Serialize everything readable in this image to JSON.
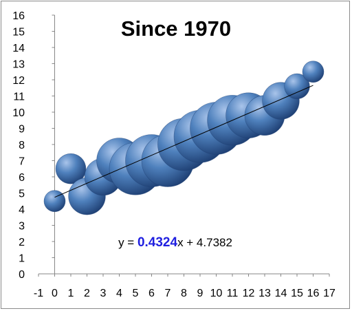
{
  "chart_data": {
    "type": "scatter",
    "bubble": true,
    "title": "Since 1970",
    "xlabel": "",
    "ylabel": "",
    "xlim": [
      -1,
      17
    ],
    "ylim": [
      0,
      16
    ],
    "x_ticks": [
      "-1",
      "0",
      "1",
      "2",
      "3",
      "4",
      "5",
      "6",
      "7",
      "8",
      "9",
      "10",
      "11",
      "12",
      "13",
      "14",
      "15",
      "16",
      "17"
    ],
    "y_ticks": [
      "0",
      "1",
      "2",
      "3",
      "4",
      "5",
      "6",
      "7",
      "8",
      "9",
      "10",
      "11",
      "12",
      "13",
      "14",
      "15",
      "16"
    ],
    "grid": false,
    "legend": "none",
    "series": [
      {
        "points": [
          {
            "x": 0,
            "y": 4.5,
            "size": 1
          },
          {
            "x": 1,
            "y": 6.5,
            "size": 2
          },
          {
            "x": 2,
            "y": 4.8,
            "size": 3
          },
          {
            "x": 3,
            "y": 6.0,
            "size": 3
          },
          {
            "x": 4,
            "y": 7.0,
            "size": 4.5
          },
          {
            "x": 5,
            "y": 6.5,
            "size": 6
          },
          {
            "x": 6,
            "y": 7.0,
            "size": 6
          },
          {
            "x": 7,
            "y": 7.0,
            "size": 6
          },
          {
            "x": 8,
            "y": 8.0,
            "size": 6
          },
          {
            "x": 9,
            "y": 8.5,
            "size": 6
          },
          {
            "x": 10,
            "y": 9.0,
            "size": 6
          },
          {
            "x": 11,
            "y": 9.5,
            "size": 5.5
          },
          {
            "x": 12,
            "y": 9.8,
            "size": 4.5
          },
          {
            "x": 13,
            "y": 9.8,
            "size": 3.5
          },
          {
            "x": 14,
            "y": 10.7,
            "size": 3
          },
          {
            "x": 15,
            "y": 11.6,
            "size": 1.4
          },
          {
            "x": 16,
            "y": 12.5,
            "size": 1
          }
        ]
      }
    ],
    "trendline": {
      "slope": 0.4324,
      "intercept": 4.7382,
      "x_range": [
        0,
        16
      ],
      "color": "#000000"
    },
    "equation": {
      "prefix": "y = ",
      "slope_text": "0.4324",
      "suffix": "x + 4.7382",
      "slope_color": "#1f1fe0"
    },
    "colors": {
      "bubble_light": "#a9c4ea",
      "bubble_mid": "#4f81bd",
      "bubble_dark": "#1e3f73"
    }
  }
}
